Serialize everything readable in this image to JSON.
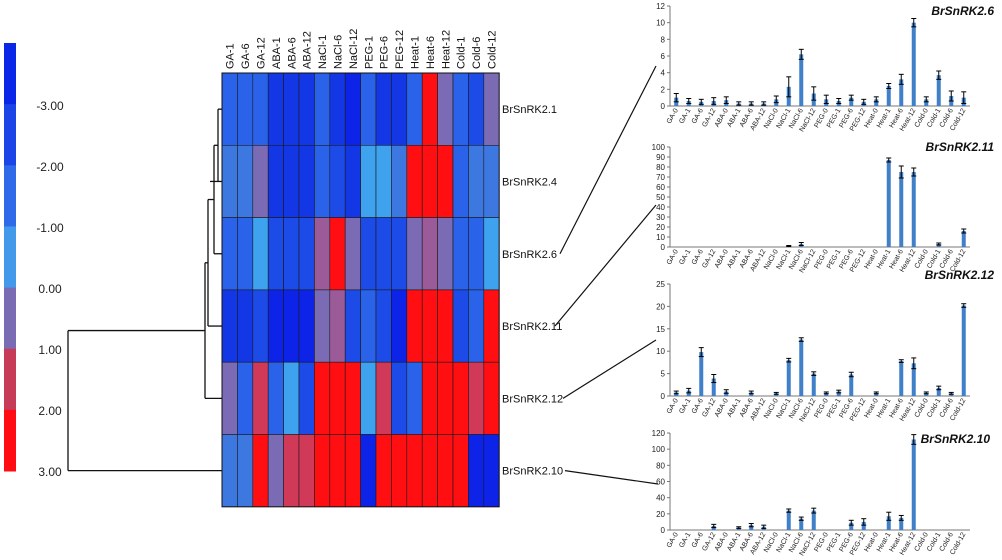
{
  "chart_data": [
    {
      "type": "heatmap",
      "title": "",
      "columns": [
        "GA-1",
        "GA-6",
        "GA-12",
        "ABA-1",
        "ABA-6",
        "ABA-12",
        "NaCl-1",
        "NaCl-6",
        "NaCl-12",
        "PEG-1",
        "PEG-6",
        "PEG-12",
        "Heat-1",
        "Heat-6",
        "Heat-12",
        "Cold-1",
        "Cold-6",
        "Cold-12"
      ],
      "rows": [
        "BrSnRK2.1",
        "BrSnRK2.4",
        "BrSnRK2.6",
        "BrSnRK2.11",
        "BrSnRK2.12",
        "BrSnRK2.10"
      ],
      "values": [
        [
          -1.5,
          -1.5,
          -1.5,
          -2.5,
          -2.5,
          -2.5,
          -1.5,
          -2.5,
          -3.0,
          -1.5,
          -2.5,
          -2.5,
          -1.5,
          3.0,
          1.0,
          -1.5,
          -2.0,
          1.0
        ],
        [
          -1.0,
          -1.0,
          1.0,
          -2.5,
          -2.5,
          -2.5,
          -1.5,
          -2.0,
          -2.5,
          -0.5,
          -0.5,
          -1.0,
          3.0,
          3.0,
          3.0,
          -1.5,
          -1.0,
          -1.0
        ],
        [
          -1.5,
          -1.5,
          -0.5,
          -2.0,
          -2.0,
          -2.0,
          1.5,
          3.0,
          1.0,
          -2.0,
          -2.0,
          -2.0,
          1.0,
          1.5,
          1.0,
          -1.5,
          -1.5,
          -0.5
        ],
        [
          -2.5,
          -2.5,
          -2.0,
          -3.0,
          -3.0,
          -3.0,
          1.0,
          1.5,
          -2.0,
          -1.5,
          -2.0,
          -3.0,
          3.0,
          3.0,
          3.0,
          -2.0,
          -1.5,
          3.0
        ],
        [
          1.0,
          -1.5,
          2.0,
          -1.5,
          -0.5,
          -2.0,
          3.0,
          3.0,
          3.0,
          -0.5,
          2.0,
          -2.0,
          -1.5,
          3.0,
          3.0,
          3.0,
          2.0,
          3.0
        ],
        [
          -1.0,
          -1.0,
          3.0,
          1.0,
          2.0,
          2.0,
          3.0,
          3.0,
          3.0,
          -3.0,
          3.0,
          3.0,
          3.0,
          3.0,
          3.0,
          3.0,
          -3.0,
          -3.0
        ]
      ],
      "colorbar": {
        "ticks": [
          "-3.00",
          "-2.00",
          "-1.00",
          "0.00",
          "1.00",
          "2.00",
          "3.00"
        ],
        "bands": [
          "#0a26e6",
          "#1c45e8",
          "#2f6ae8",
          "#4399ea",
          "#7a6cb3",
          "#c63b58",
          "#ff0d12"
        ]
      },
      "colors": {
        "-3": "#0d24e8",
        "-2.5": "#1437e6",
        "-2": "#1c4be8",
        "-1.5": "#2a63ea",
        "-1": "#3d78e0",
        "-0.5": "#3ea2ee",
        "1": "#7b6bb5",
        "1.5": "#9b5a98",
        "2": "#d03a58",
        "3": "#ff0e12"
      }
    },
    {
      "type": "bar",
      "title": "BrSnRK2.6",
      "categories": [
        "GA-0",
        "GA-1",
        "GA-6",
        "GA-12",
        "ABA-0",
        "ABA-1",
        "ABA-6",
        "ABA-12",
        "NaCl-0",
        "NaCl-1",
        "NaCl-6",
        "NaCl-12",
        "PEG-0",
        "PEG-1",
        "PEG-6",
        "PEG-12",
        "Heat-0",
        "Heat-1",
        "Heat-6",
        "Heat-12",
        "Cold-0",
        "Cold-1",
        "Cold-6",
        "Cold-12"
      ],
      "values": [
        1.0,
        0.6,
        0.5,
        0.6,
        0.7,
        0.3,
        0.3,
        0.3,
        0.8,
        2.3,
        6.2,
        1.5,
        0.8,
        0.6,
        1.0,
        0.5,
        0.8,
        2.4,
        3.2,
        10.0,
        0.8,
        3.7,
        1.2,
        1.0
      ],
      "errors": [
        0.5,
        0.3,
        0.3,
        0.4,
        0.4,
        0.2,
        0.2,
        0.2,
        0.4,
        1.2,
        0.6,
        0.8,
        0.5,
        0.3,
        0.3,
        0.3,
        0.3,
        0.3,
        0.6,
        0.5,
        0.3,
        0.5,
        0.6,
        0.7
      ],
      "ylim": [
        0,
        12
      ],
      "yticks": [
        "0",
        "2",
        "4",
        "6",
        "8",
        "10",
        "12"
      ]
    },
    {
      "type": "bar",
      "title": "BrSnRK2.11",
      "categories": [
        "GA-0",
        "GA-1",
        "GA-6",
        "GA-12",
        "ABA-0",
        "ABA-1",
        "ABA-6",
        "ABA-12",
        "NaCl-0",
        "NaCl-1",
        "NaCl-6",
        "NaCl-12",
        "PEG-0",
        "PEG-1",
        "PEG-6",
        "PEG-12",
        "Heat-0",
        "Heat-1",
        "Heat-6",
        "Heat-12",
        "Cold-0",
        "Cold-1",
        "Cold-6",
        "Cold-12"
      ],
      "values": [
        0,
        0,
        0,
        0,
        0,
        0,
        0,
        0,
        0,
        1,
        3,
        0,
        0,
        0,
        0,
        0,
        0,
        87,
        75,
        75,
        0,
        3,
        0,
        16
      ],
      "errors": [
        0,
        0,
        0,
        0,
        0,
        0,
        0,
        0,
        0,
        0.5,
        1.5,
        0,
        0,
        0,
        0,
        0,
        0,
        2,
        6,
        4,
        0,
        1,
        0,
        2
      ],
      "ylim": [
        0,
        100
      ],
      "yticks": [
        "0",
        "10",
        "20",
        "30",
        "40",
        "50",
        "60",
        "70",
        "80",
        "90",
        "100"
      ]
    },
    {
      "type": "bar",
      "title": "BrSnRK2.12",
      "categories": [
        "GA-0",
        "GA-1",
        "GA-6",
        "GA-12",
        "ABA-0",
        "ABA-1",
        "ABA-6",
        "ABA-12",
        "NaCl-0",
        "NaCl-1",
        "NaCl-6",
        "NaCl-12",
        "PEG-0",
        "PEG-1",
        "PEG-6",
        "PEG-12",
        "Heat-0",
        "Heat-1",
        "Heat-6",
        "Heat-12",
        "Cold-0",
        "Cold-1",
        "Cold-6",
        "Cold-12"
      ],
      "values": [
        0.8,
        1.2,
        9.8,
        3.9,
        1.0,
        0,
        0.8,
        0,
        0.6,
        8.0,
        12.6,
        5.0,
        0.7,
        1.0,
        4.8,
        0,
        0.7,
        0,
        7.8,
        7.3,
        0.7,
        1.8,
        0.6,
        20.2
      ],
      "errors": [
        0.3,
        0.5,
        1.0,
        0.9,
        0.4,
        0,
        0.3,
        0,
        0.2,
        0.4,
        0.4,
        0.4,
        0.2,
        0.3,
        0.5,
        0,
        0.2,
        0,
        0.3,
        1.2,
        0.2,
        0.4,
        0.2,
        0.4
      ],
      "ylim": [
        0,
        25
      ],
      "yticks": [
        "0",
        "5",
        "10",
        "15",
        "20",
        "25"
      ]
    },
    {
      "type": "bar",
      "title": "BrSnRK2.10",
      "categories": [
        "GA-0",
        "GA-1",
        "GA-6",
        "GA-12",
        "ABA-0",
        "ABA-1",
        "ABA-6",
        "ABA-12",
        "NaCl-0",
        "NaCl-1",
        "NaCl-6",
        "NaCl-12",
        "PEG-0",
        "PEG-1",
        "PEG-6",
        "PEG-12",
        "Heat-0",
        "Heat-1",
        "Heat-6",
        "Heat-12",
        "Cold-0",
        "Cold-1",
        "Cold-6",
        "Cold-12"
      ],
      "values": [
        0,
        0,
        0,
        5,
        0,
        3,
        6,
        4,
        0,
        24,
        14,
        24,
        0,
        0,
        9,
        10,
        0,
        17,
        15,
        112,
        0,
        0,
        0,
        0
      ],
      "errors": [
        0,
        0,
        0,
        2,
        0,
        1,
        2,
        2,
        0,
        2,
        2,
        3,
        0,
        0,
        3,
        4,
        0,
        5,
        3,
        6,
        0,
        0,
        0,
        0
      ],
      "ylim": [
        0,
        120
      ],
      "yticks": [
        "0",
        "20",
        "40",
        "60",
        "80",
        "100",
        "120"
      ]
    }
  ]
}
